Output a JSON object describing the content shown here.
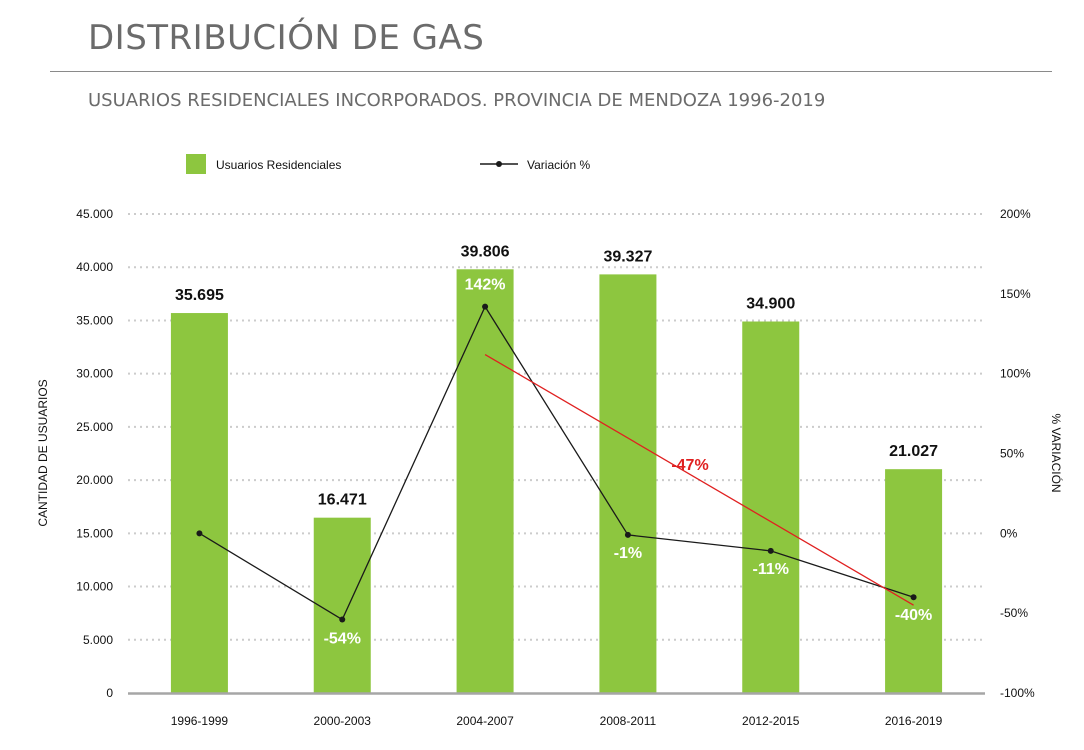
{
  "header": {
    "title": "DISTRIBUCIÓN DE GAS",
    "subtitle": "USUARIOS RESIDENCIALES INCORPORADOS. PROVINCIA DE MENDOZA 1996-2019"
  },
  "colors": {
    "bar": "#8dc63f",
    "line": "#1a1a1a",
    "trend": "#e02020",
    "axis": "#a6a6a6",
    "grid": "#cccccc",
    "text": "#111111"
  },
  "chart_data": {
    "type": "bar",
    "categories": [
      "1996-1999",
      "2000-2003",
      "2004-2007",
      "2008-2011",
      "2012-2015",
      "2016-2019"
    ],
    "series": [
      {
        "name": "Usuarios Residenciales",
        "type": "bar",
        "axis": "left",
        "values": [
          35695,
          16471,
          39806,
          39327,
          34900,
          21027
        ],
        "labels": [
          "35.695",
          "16.471",
          "39.806",
          "39.327",
          "34.900",
          "21.027"
        ]
      },
      {
        "name": "Variación %",
        "type": "line",
        "axis": "right",
        "values": [
          0,
          -54,
          142,
          -1,
          -11,
          -40
        ],
        "labels": [
          "",
          "-54%",
          "142%",
          "-1%",
          "-11%",
          "-40%"
        ]
      }
    ],
    "trendline": {
      "from_index": 2,
      "to_index": 5,
      "start_value": 112,
      "end_value": -45,
      "label": "-47%"
    },
    "ylabel": "CANTIDAD DE USUARIOS",
    "y2label": "% VARIACIÓN",
    "ylim": [
      0,
      45000
    ],
    "y2lim": [
      -100,
      200
    ],
    "yticks": [
      {
        "value": 0,
        "label": "0"
      },
      {
        "value": 5000,
        "label": "5.000"
      },
      {
        "value": 10000,
        "label": "10.000"
      },
      {
        "value": 15000,
        "label": "15.000"
      },
      {
        "value": 20000,
        "label": "20.000"
      },
      {
        "value": 25000,
        "label": "25.000"
      },
      {
        "value": 30000,
        "label": "30.000"
      },
      {
        "value": 35000,
        "label": "35.000"
      },
      {
        "value": 40000,
        "label": "40.000"
      },
      {
        "value": 45000,
        "label": "45.000"
      }
    ],
    "y2ticks": [
      {
        "value": -100,
        "label": "-100%"
      },
      {
        "value": -50,
        "label": "-50%"
      },
      {
        "value": 0,
        "label": "0%"
      },
      {
        "value": 50,
        "label": "50%"
      },
      {
        "value": 100,
        "label": "100%"
      },
      {
        "value": 150,
        "label": "150%"
      },
      {
        "value": 200,
        "label": "200%"
      }
    ],
    "grid": true,
    "legend_position": "top-left"
  }
}
